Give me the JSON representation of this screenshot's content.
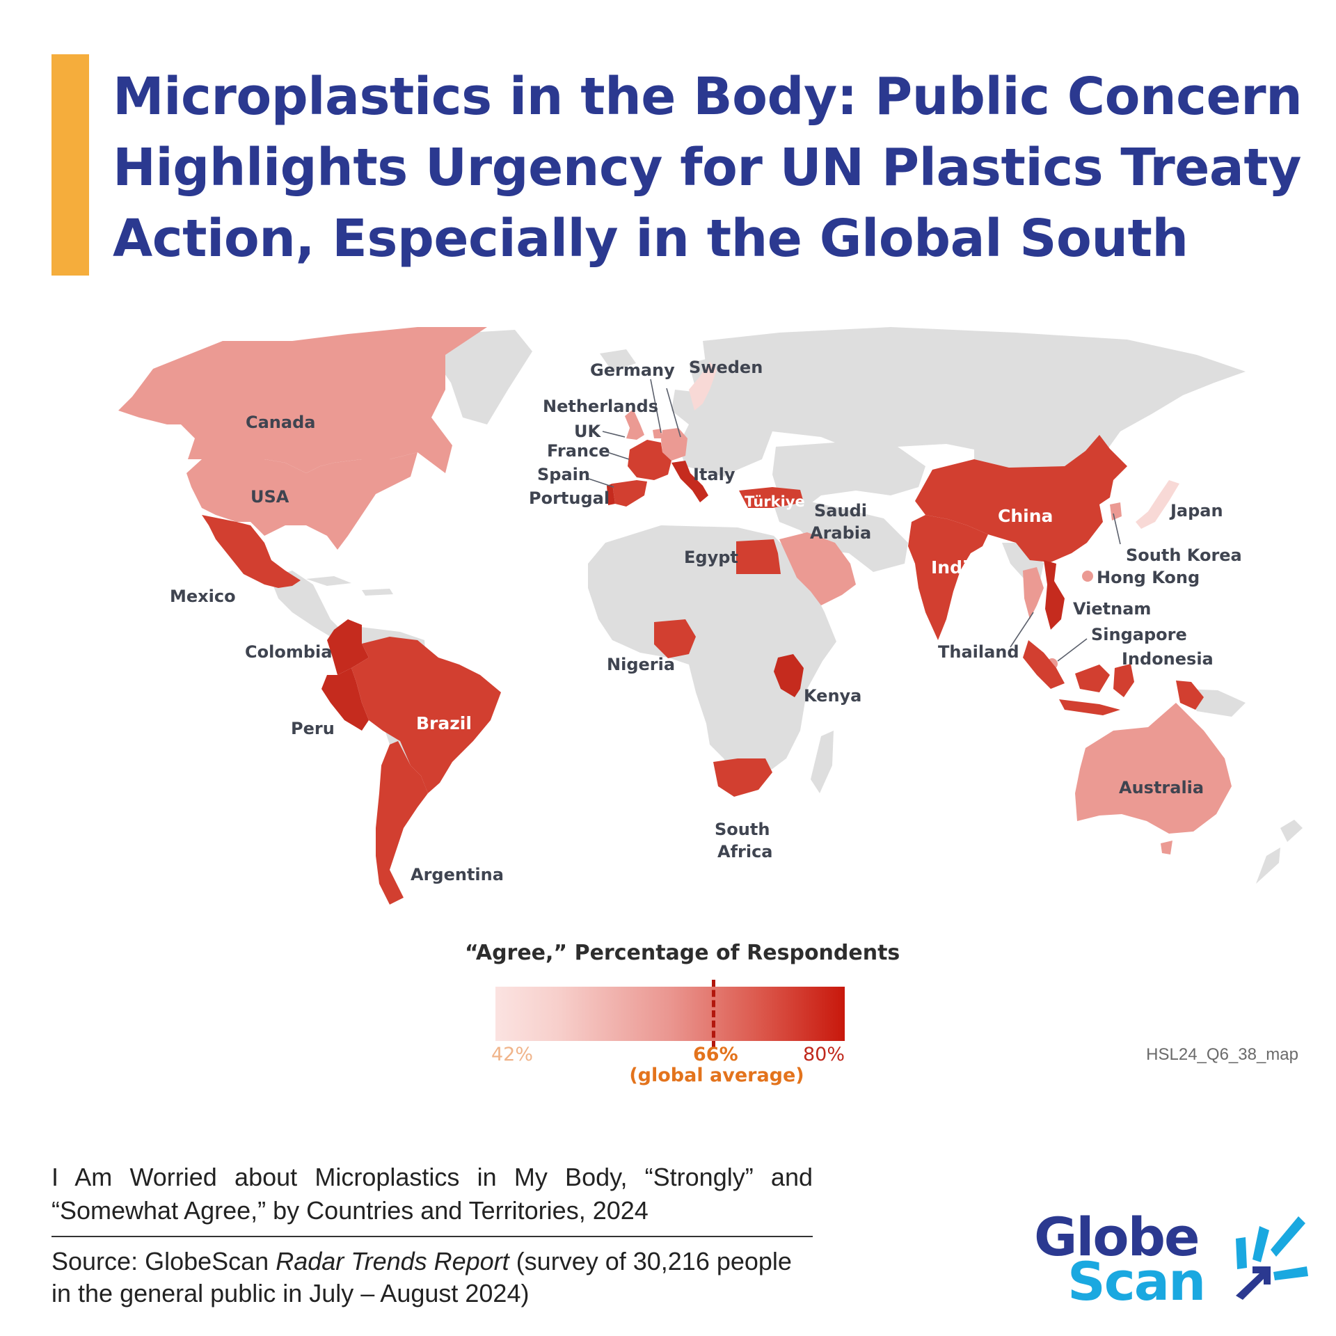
{
  "title": {
    "line1": "Microplastics in the Body: Public Concern",
    "line2": "Highlights Urgency for UN Plastics Treaty",
    "line3": "Action, Especially in the Global South"
  },
  "map": {
    "colors": {
      "light": "#f8d9d6",
      "medium": "#eb9a93",
      "strong": "#d23f30",
      "darkest": "#c52b1e",
      "no_data": "#dedede"
    },
    "countries": [
      {
        "id": "canada",
        "label": "Canada",
        "shade": "medium"
      },
      {
        "id": "usa",
        "label": "USA",
        "shade": "medium"
      },
      {
        "id": "mexico",
        "label": "Mexico",
        "shade": "strong"
      },
      {
        "id": "colombia",
        "label": "Colombia",
        "shade": "strong"
      },
      {
        "id": "peru",
        "label": "Peru",
        "shade": "strong"
      },
      {
        "id": "brazil",
        "label": "Brazil",
        "shade": "strong"
      },
      {
        "id": "argentina",
        "label": "Argentina",
        "shade": "strong"
      },
      {
        "id": "germany",
        "label": "Germany",
        "shade": "medium"
      },
      {
        "id": "sweden",
        "label": "Sweden",
        "shade": "light"
      },
      {
        "id": "netherlands",
        "label": "Netherlands",
        "shade": "medium"
      },
      {
        "id": "uk",
        "label": "UK",
        "shade": "medium"
      },
      {
        "id": "france",
        "label": "France",
        "shade": "strong"
      },
      {
        "id": "spain",
        "label": "Spain",
        "shade": "strong"
      },
      {
        "id": "portugal",
        "label": "Portugal",
        "shade": "strong"
      },
      {
        "id": "italy",
        "label": "Italy",
        "shade": "strong"
      },
      {
        "id": "turkiye",
        "label": "Türkiye",
        "shade": "strong"
      },
      {
        "id": "saudi-arabia",
        "label_line1": "Saudi",
        "label_line2": "Arabia",
        "shade": "medium"
      },
      {
        "id": "egypt",
        "label": "Egypt",
        "shade": "strong"
      },
      {
        "id": "nigeria",
        "label": "Nigeria",
        "shade": "strong"
      },
      {
        "id": "kenya",
        "label": "Kenya",
        "shade": "strong"
      },
      {
        "id": "south-africa",
        "label_line1": "South",
        "label_line2": "Africa",
        "shade": "strong"
      },
      {
        "id": "china",
        "label": "China",
        "shade": "strong"
      },
      {
        "id": "india",
        "label": "India",
        "shade": "strong"
      },
      {
        "id": "japan",
        "label": "Japan",
        "shade": "light"
      },
      {
        "id": "south-korea",
        "label": "South Korea",
        "shade": "medium"
      },
      {
        "id": "hong-kong",
        "label": "Hong Kong",
        "shade": "medium"
      },
      {
        "id": "vietnam",
        "label": "Vietnam",
        "shade": "strong"
      },
      {
        "id": "thailand",
        "label": "Thailand",
        "shade": "medium"
      },
      {
        "id": "singapore",
        "label": "Singapore",
        "shade": "medium"
      },
      {
        "id": "indonesia",
        "label": "Indonesia",
        "shade": "strong"
      },
      {
        "id": "australia",
        "label": "Australia",
        "shade": "medium"
      }
    ]
  },
  "legend": {
    "title": "“Agree,” Percentage of Respondents",
    "min_label": "42%",
    "avg_label": "66%",
    "avg_note": "(global average)",
    "max_label": "80%",
    "min_value": 42,
    "avg_value": 66,
    "max_value": 80
  },
  "chart_id": "HSL24_Q6_38_map",
  "caption": "I Am Worried about Microplastics in My Body, “Strongly” and “Somewhat Agree,” by Countries and Territories, 2024",
  "source": {
    "prefix": "Source: GlobeScan ",
    "report": "Radar Trends Report",
    "suffix": " (survey of 30,216 people in the general public in July – August 2024)"
  },
  "logo": {
    "line1": "Globe",
    "line2": "Scan",
    "primary_color": "#2b3990",
    "secondary_color": "#1aa8e0"
  }
}
